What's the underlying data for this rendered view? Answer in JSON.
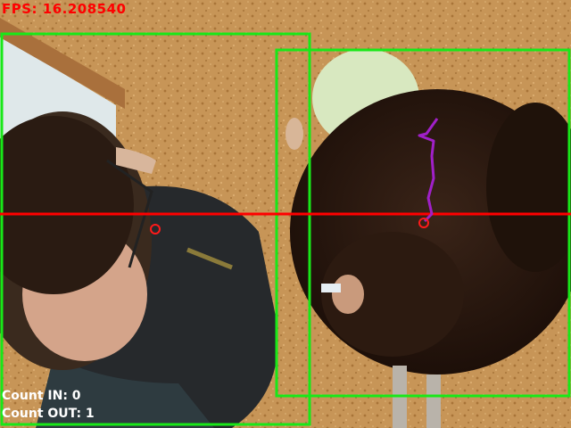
{
  "hud": {
    "fps_label": "FPS: 16.208540",
    "count_in_label": "Count IN: 0",
    "count_out_label": "Count OUT: 1"
  },
  "colors": {
    "detection_box": "#18e818",
    "counting_line": "#ff0000",
    "centroid_marker": "#ff1a1a",
    "trajectory": "#a020c8",
    "fps_text": "#ff0000",
    "count_text": "#ffffff"
  },
  "scene": {
    "detections": 2,
    "tracked_trajectories": 1
  }
}
